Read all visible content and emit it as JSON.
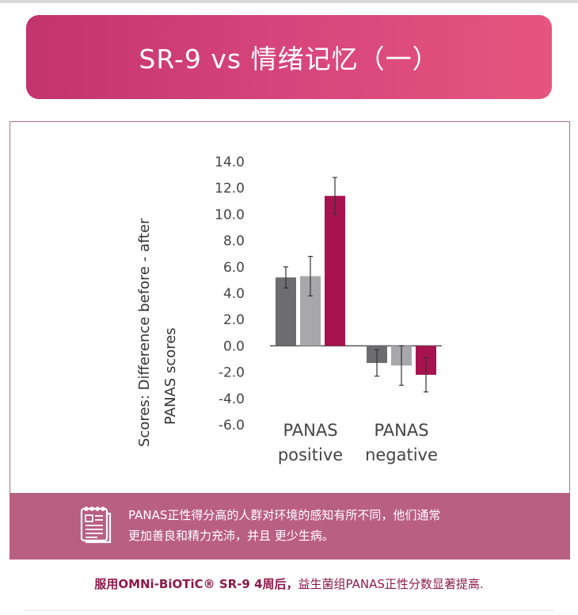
{
  "header": {
    "title": "SR-9  vs  情绪记忆（一）"
  },
  "chart_data": {
    "type": "bar",
    "categories": [
      [
        "PANAS",
        "positive"
      ],
      [
        "PANAS",
        "negative"
      ]
    ],
    "series": [
      {
        "values": [
          5.2,
          -1.3
        ],
        "error": [
          0.8,
          1.0
        ],
        "color": "#6d6d6f"
      },
      {
        "values": [
          5.3,
          -1.5
        ],
        "error": [
          1.5,
          1.5
        ],
        "color": "#a8a8aa"
      },
      {
        "values": [
          11.4,
          -2.2
        ],
        "error": [
          1.4,
          1.3
        ],
        "color": "#a8134f"
      }
    ],
    "ylabel": [
      "Scores: Difference before - after",
      "PANAS scores"
    ],
    "yticks": [
      "14.0",
      "12.0",
      "10.0",
      "8.0",
      "6.0",
      "4.0",
      "2.0",
      "0.0",
      "-2.0",
      "-4.0",
      "-6.0"
    ],
    "ylim": [
      -6,
      14
    ],
    "grid": false
  },
  "note": {
    "icon": "document-icon",
    "lines": [
      "PANAS正性得分高的人群对环境的感知有所不同，他们通常",
      "更加善良和精力充沛，并且 更少生病。"
    ]
  },
  "footer": {
    "bold": "服用OMNi-BiOTiC® SR-9 4周后，",
    "regular": "益生菌组PANAS正性分数显著提高."
  },
  "colors": {
    "banner_left": "#c3336c",
    "banner_right": "#e7557e",
    "note_band": "#b95f80",
    "footer_text": "#8c1a4a"
  }
}
